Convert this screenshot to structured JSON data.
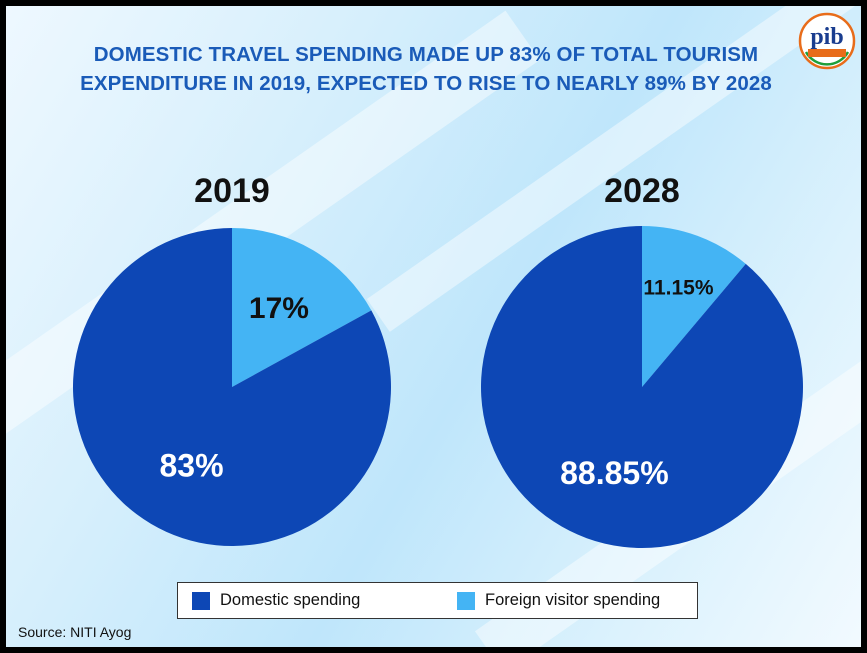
{
  "headline": {
    "line1": "DOMESTIC TRAVEL SPENDING MADE UP 83% OF TOTAL TOURISM",
    "line2": "EXPENDITURE IN 2019, EXPECTED TO RISE TO NEARLY 89% BY 2028"
  },
  "logo": {
    "label": "pib"
  },
  "chart_data": [
    {
      "type": "pie",
      "title": "2019",
      "slices": [
        {
          "name": "Foreign visitor spending",
          "value": 17,
          "label": "17%",
          "color": "#44b4f4"
        },
        {
          "name": "Domestic spending",
          "value": 83,
          "label": "83%",
          "color": "#0d47b5"
        }
      ]
    },
    {
      "type": "pie",
      "title": "2028",
      "slices": [
        {
          "name": "Foreign visitor spending",
          "value": 11.15,
          "label": "11.15%",
          "color": "#44b4f4"
        },
        {
          "name": "Domestic spending",
          "value": 88.85,
          "label": "88.85%",
          "color": "#0d47b5"
        }
      ]
    }
  ],
  "legend": [
    {
      "label": "Domestic spending",
      "color": "#0d47b5"
    },
    {
      "label": "Foreign visitor spending",
      "color": "#44b4f4"
    }
  ],
  "source": "Source: NITI Ayog"
}
